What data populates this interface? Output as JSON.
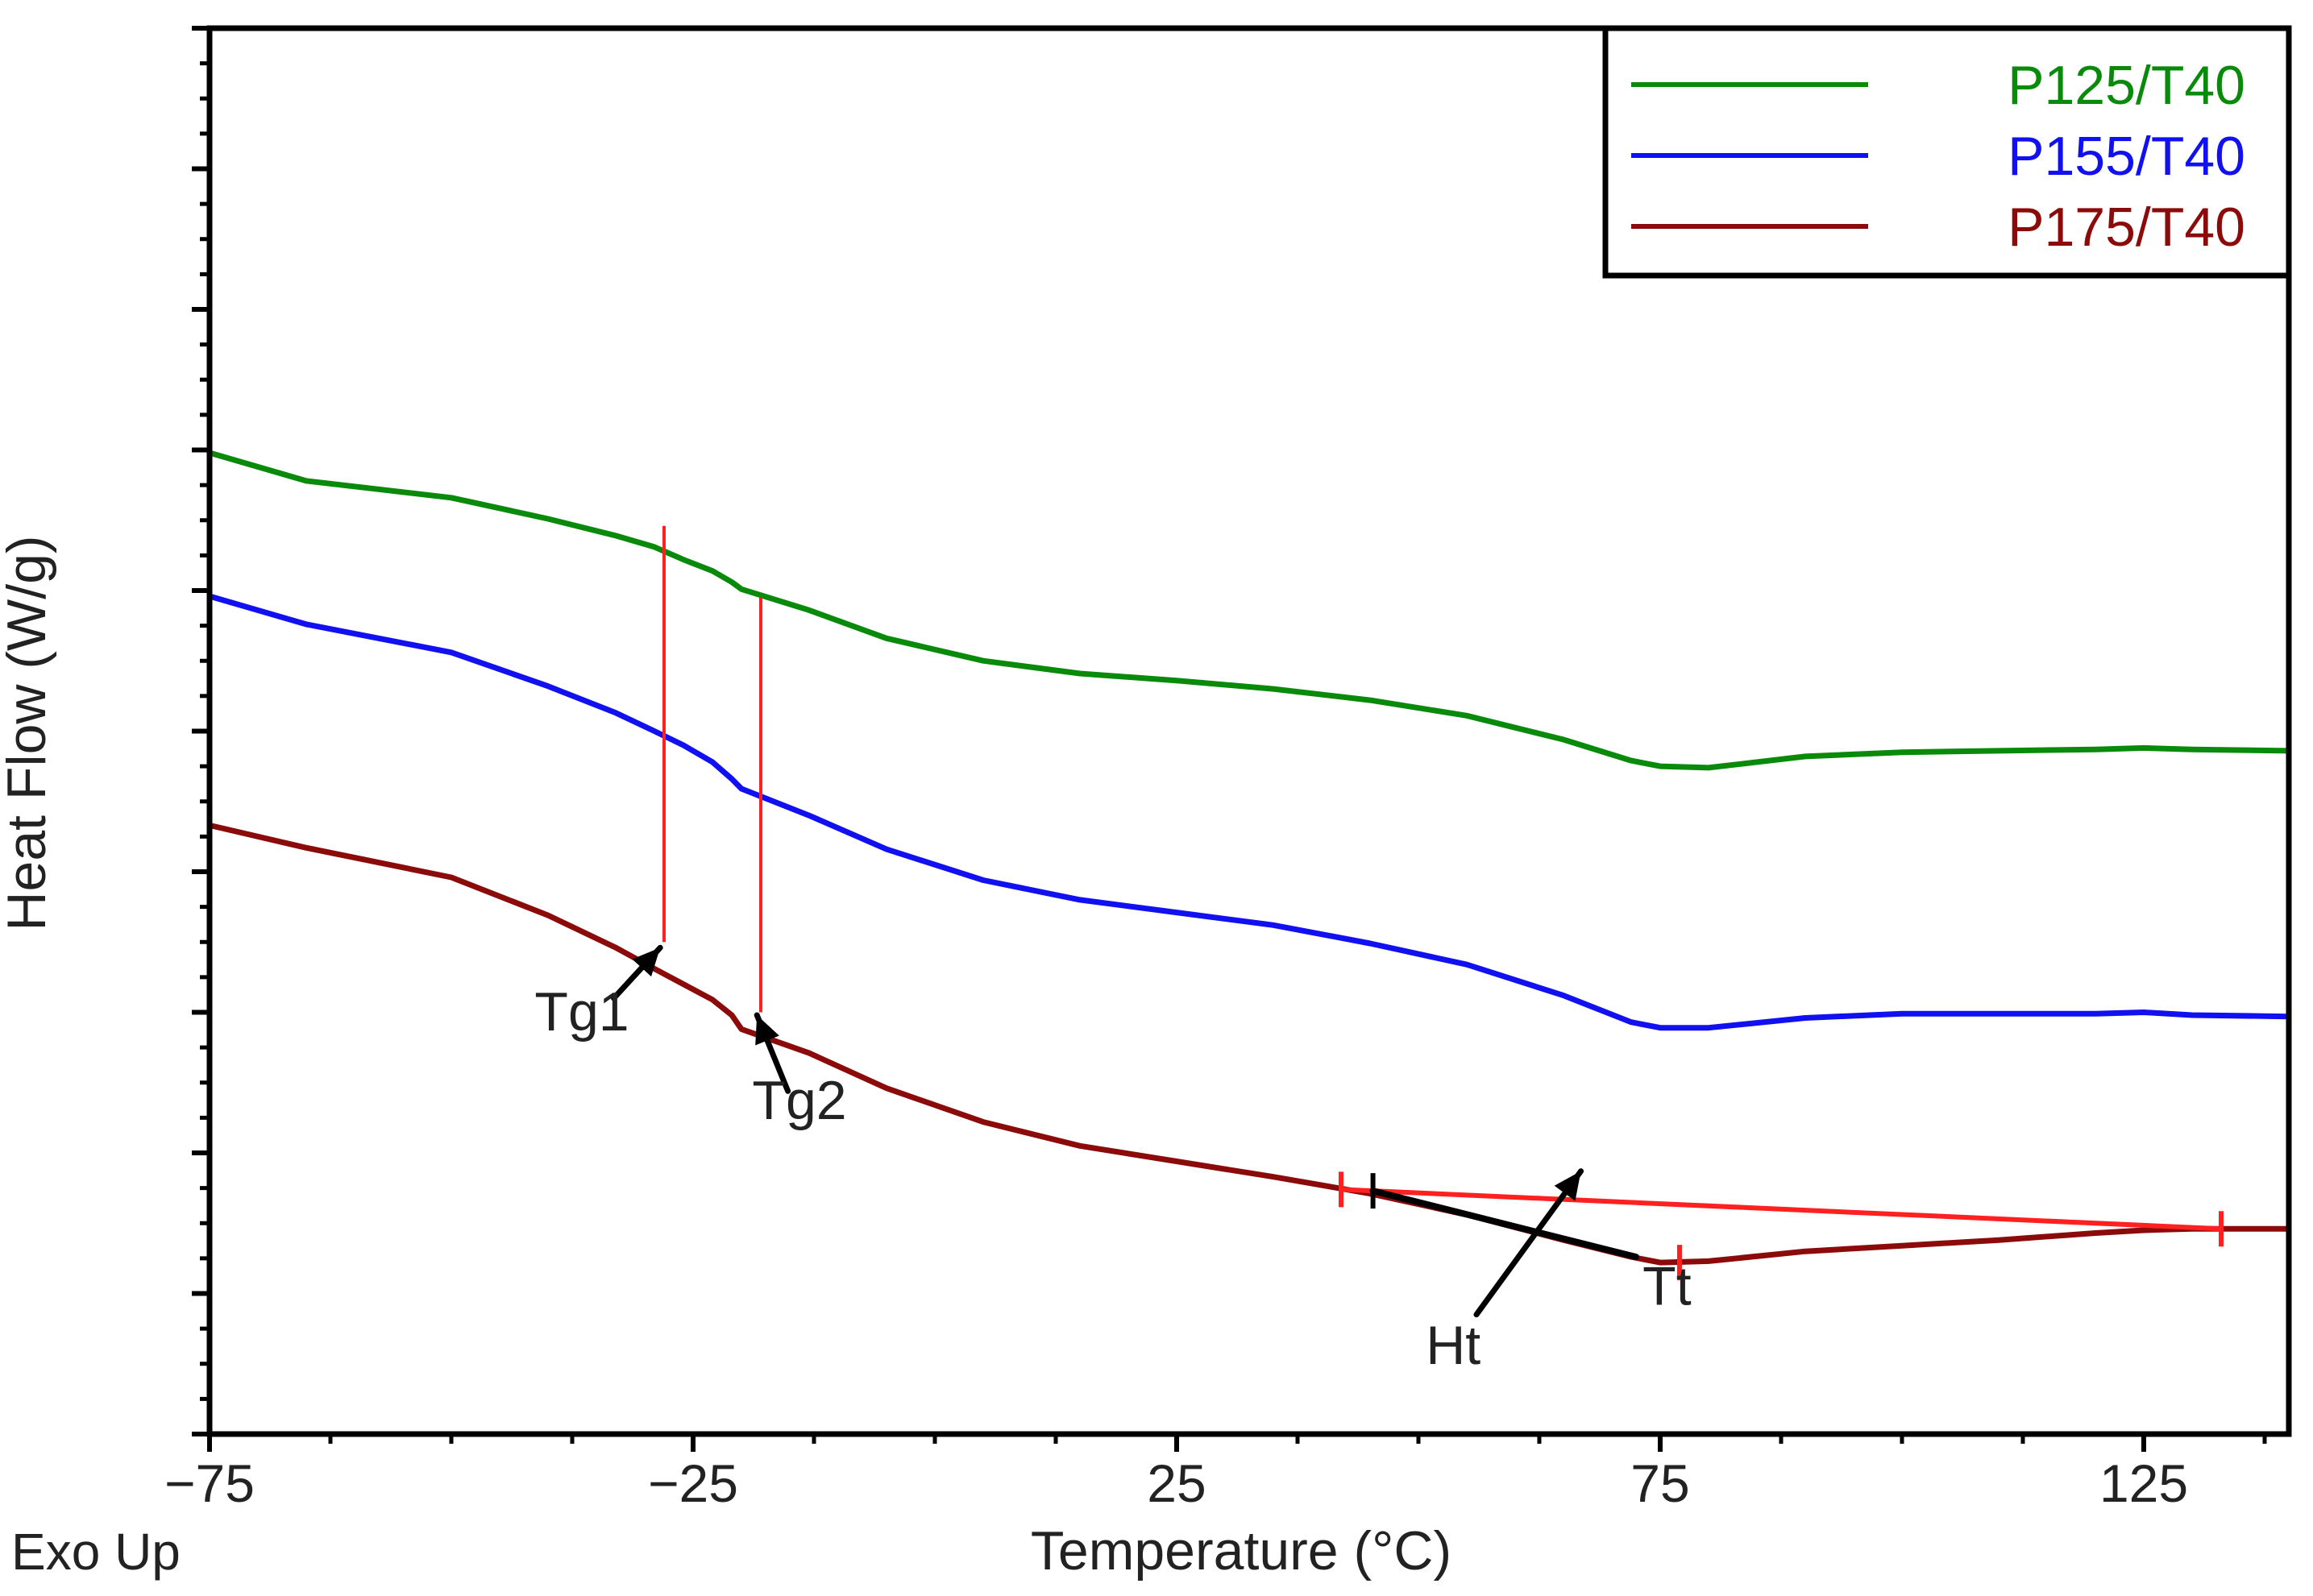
{
  "chart_data": {
    "type": "line",
    "title": "",
    "xlabel": "Temperature (°C)",
    "ylabel": "Heat Flow (W/g)",
    "corner_label": "Exo Up",
    "xlim": [
      -75,
      140
    ],
    "ylim": [
      0,
      100
    ],
    "y_tick_labels_shown": false,
    "x_ticks": [
      {
        "value": -75,
        "label": "−75"
      },
      {
        "value": -25,
        "label": "−25"
      },
      {
        "value": 25,
        "label": "25"
      },
      {
        "value": 75,
        "label": "75"
      },
      {
        "value": 125,
        "label": "125"
      }
    ],
    "legend": {
      "position": "top-right",
      "entries": [
        {
          "name": "P125/T40",
          "color": "#0a8a0a"
        },
        {
          "name": "P155/T40",
          "color": "#1010f0"
        },
        {
          "name": "P175/T40",
          "color": "#8b0a0a"
        }
      ]
    },
    "series": [
      {
        "name": "P125/T40",
        "color": "#0a8a0a",
        "x": [
          -75,
          -65,
          -50,
          -40,
          -33,
          -29,
          -26,
          -23,
          -21,
          -20,
          -13,
          -5,
          5,
          15,
          25,
          35,
          45,
          55,
          65,
          72,
          75,
          80,
          90,
          100,
          110,
          120,
          125,
          130,
          140
        ],
        "y": [
          69.8,
          67.8,
          66.6,
          65.1,
          63.9,
          63.1,
          62.2,
          61.4,
          60.6,
          60.1,
          58.6,
          56.6,
          55.0,
          54.1,
          53.6,
          53.0,
          52.2,
          51.1,
          49.4,
          47.9,
          47.5,
          47.4,
          48.2,
          48.5,
          48.6,
          48.7,
          48.8,
          48.7,
          48.6
        ]
      },
      {
        "name": "P155/T40",
        "color": "#1010f0",
        "x": [
          -75,
          -65,
          -50,
          -40,
          -33,
          -29,
          -26,
          -23,
          -21,
          -20,
          -13,
          -5,
          5,
          15,
          25,
          35,
          45,
          55,
          65,
          72,
          75,
          80,
          90,
          100,
          110,
          120,
          125,
          130,
          140
        ],
        "y": [
          59.6,
          57.6,
          55.6,
          53.2,
          51.3,
          50.0,
          49.0,
          47.8,
          46.6,
          45.9,
          44.0,
          41.6,
          39.4,
          38.0,
          37.1,
          36.2,
          34.9,
          33.4,
          31.2,
          29.3,
          28.9,
          28.9,
          29.6,
          29.9,
          29.9,
          29.9,
          30.0,
          29.8,
          29.7
        ]
      },
      {
        "name": "P175/T40",
        "color": "#8b0a0a",
        "x": [
          -75,
          -65,
          -50,
          -40,
          -33,
          -29,
          -26,
          -23,
          -21,
          -20,
          -13,
          -5,
          5,
          15,
          25,
          35,
          45,
          55,
          65,
          72,
          75,
          80,
          90,
          100,
          110,
          120,
          125,
          130,
          140
        ],
        "y": [
          43.3,
          41.7,
          39.6,
          36.9,
          34.6,
          33.1,
          32.0,
          30.9,
          29.8,
          28.8,
          27.1,
          24.6,
          22.2,
          20.5,
          19.4,
          18.3,
          17.1,
          15.6,
          13.8,
          12.6,
          12.2,
          12.3,
          13.0,
          13.4,
          13.8,
          14.3,
          14.5,
          14.6,
          14.6
        ]
      }
    ],
    "guide_lines": [
      {
        "name": "Tg1 marker",
        "color": "#ff2020",
        "x": -28,
        "y_from": 35.0,
        "y_to": 64.6
      },
      {
        "name": "Tg2 marker",
        "color": "#ff2020",
        "x": -18,
        "y_from": 30.0,
        "y_to": 59.5
      }
    ],
    "baseline": {
      "name": "transition baseline",
      "color": "#ff2020",
      "x_start": 42,
      "y_start": 17.4,
      "x_end": 133,
      "y_end": 14.6
    },
    "baseline_markers": [
      {
        "x": 42,
        "y": 17.4,
        "color": "#ff2020"
      },
      {
        "x": 77,
        "y": 12.2,
        "color": "#ff2020"
      },
      {
        "x": 133,
        "y": 14.6,
        "color": "#ff2020"
      },
      {
        "x": 45.3,
        "y": 17.3,
        "color": "#000000"
      }
    ],
    "ht_segment": {
      "color": "#000000",
      "x_start": 45.3,
      "y_start": 17.3,
      "x_end": 72.5,
      "y_end": 12.6
    },
    "annotations": [
      {
        "text": "Tg1",
        "label_x": -36.5,
        "label_y": 28.7,
        "arrow_from_x": -33.2,
        "arrow_from_y": 31.0,
        "arrow_to_x": -28.4,
        "arrow_to_y": 34.6
      },
      {
        "text": "Tg2",
        "label_x": -14,
        "label_y": 22.4,
        "arrow_from_x": -15.2,
        "arrow_from_y": 24.4,
        "arrow_to_x": -18.4,
        "arrow_to_y": 29.8
      },
      {
        "text": "Ht",
        "label_x": 53.6,
        "label_y": 5.0,
        "arrow_from_x": 56.0,
        "arrow_from_y": 8.5,
        "arrow_to_x": 66.8,
        "arrow_to_y": 18.7
      },
      {
        "text": "Tt",
        "label_x": 75.7,
        "label_y": 9.2
      }
    ]
  }
}
